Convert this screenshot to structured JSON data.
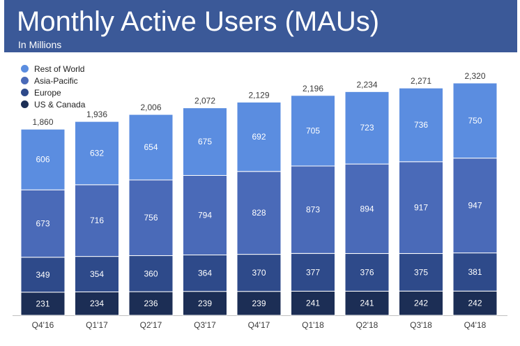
{
  "header": {
    "title": "Monthly Active Users (MAUs)",
    "subtitle": "In Millions"
  },
  "colors": {
    "header_bg": "#3b5998",
    "rest_of_world": "#5b8de0",
    "asia_pacific": "#4a6ab8",
    "europe": "#2e4a8a",
    "us_canada": "#1c2e55"
  },
  "chart_data": {
    "type": "bar",
    "stacked": true,
    "categories": [
      "Q4'16",
      "Q1'17",
      "Q2'17",
      "Q3'17",
      "Q4'17",
      "Q1'18",
      "Q2'18",
      "Q3'18",
      "Q4'18"
    ],
    "totals": [
      1860,
      1936,
      2006,
      2072,
      2129,
      2196,
      2234,
      2271,
      2320
    ],
    "total_labels": [
      "1,860",
      "1,936",
      "2,006",
      "2,072",
      "2,129",
      "2,196",
      "2,234",
      "2,271",
      "2,320"
    ],
    "series": [
      {
        "name": "US & Canada",
        "color": "#1c2e55",
        "values": [
          231,
          234,
          236,
          239,
          239,
          241,
          241,
          242,
          242
        ]
      },
      {
        "name": "Europe",
        "color": "#2e4a8a",
        "values": [
          349,
          354,
          360,
          364,
          370,
          377,
          376,
          375,
          381
        ]
      },
      {
        "name": "Asia-Pacific",
        "color": "#4a6ab8",
        "values": [
          673,
          716,
          756,
          794,
          828,
          873,
          894,
          917,
          947
        ]
      },
      {
        "name": "Rest of World",
        "color": "#5b8de0",
        "values": [
          606,
          632,
          654,
          675,
          692,
          705,
          723,
          736,
          750
        ]
      }
    ],
    "legend_order": [
      "Rest of World",
      "Asia-Pacific",
      "Europe",
      "US & Canada"
    ],
    "legend_position": "top-left",
    "ylim": [
      0,
      2320
    ],
    "grid": false
  }
}
